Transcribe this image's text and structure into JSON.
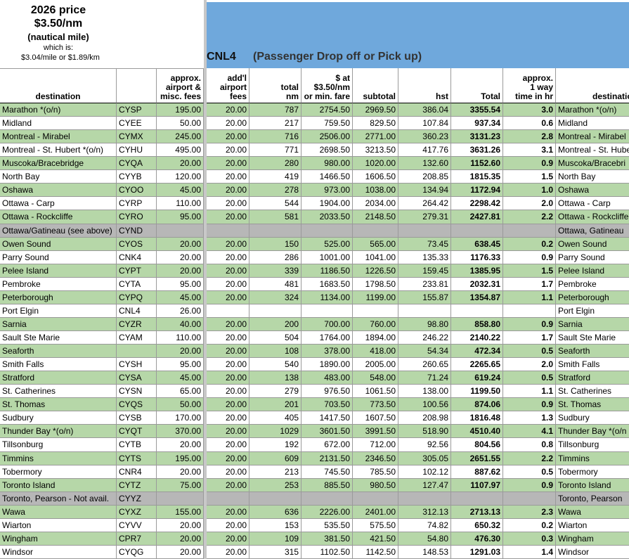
{
  "header": {
    "price_title": "2026 price",
    "rate": "$3.50/nm",
    "unit": "(nautical mile)",
    "which": "which is:",
    "conversion": "$3.04/mile or $1.89/km",
    "code": "CNL4",
    "banner": "(Passenger Drop off or Pick up)"
  },
  "table": {
    "columns": [
      "destination",
      null,
      "approx.\nairport &\nmisc. fees",
      "add'l\nairport\nfees",
      "total\nnm",
      "$ at\n$3.50/nm\nor min. fare",
      "subtotal",
      "hst",
      "Total",
      "approx.\n1 way\ntime in hr",
      "destination"
    ],
    "rows": [
      {
        "shade": "green",
        "cells": [
          "Marathon *(o/n)",
          "CYSP",
          "195.00",
          "20.00",
          "787",
          "2754.50",
          "2969.50",
          "386.04",
          "3355.54",
          "3.0",
          "Marathon *(o/n)"
        ]
      },
      {
        "shade": "white",
        "cells": [
          "Midland",
          "CYEE",
          "50.00",
          "20.00",
          "217",
          "759.50",
          "829.50",
          "107.84",
          "937.34",
          "0.6",
          "Midland"
        ]
      },
      {
        "shade": "green",
        "cells": [
          "Montreal - Mirabel",
          "CYMX",
          "245.00",
          "20.00",
          "716",
          "2506.00",
          "2771.00",
          "360.23",
          "3131.23",
          "2.8",
          "Montreal - Mirabel"
        ]
      },
      {
        "shade": "white",
        "cells": [
          "Montreal - St. Hubert *(o/n)",
          "CYHU",
          "495.00",
          "20.00",
          "771",
          "2698.50",
          "3213.50",
          "417.76",
          "3631.26",
          "3.1",
          "Montreal - St. Hube"
        ]
      },
      {
        "shade": "green",
        "cells": [
          "Muscoka/Bracebridge",
          "CYQA",
          "20.00",
          "20.00",
          "280",
          "980.00",
          "1020.00",
          "132.60",
          "1152.60",
          "0.9",
          "Muscoka/Bracebri"
        ]
      },
      {
        "shade": "white",
        "cells": [
          "North Bay",
          "CYYB",
          "120.00",
          "20.00",
          "419",
          "1466.50",
          "1606.50",
          "208.85",
          "1815.35",
          "1.5",
          "North Bay"
        ]
      },
      {
        "shade": "green",
        "cells": [
          "Oshawa",
          "CYOO",
          "45.00",
          "20.00",
          "278",
          "973.00",
          "1038.00",
          "134.94",
          "1172.94",
          "1.0",
          "Oshawa"
        ]
      },
      {
        "shade": "white",
        "cells": [
          "Ottawa - Carp",
          "CYRP",
          "110.00",
          "20.00",
          "544",
          "1904.00",
          "2034.00",
          "264.42",
          "2298.42",
          "2.0",
          "Ottawa - Carp"
        ]
      },
      {
        "shade": "green",
        "cells": [
          "Ottawa - Rockcliffe",
          "CYRO",
          "95.00",
          "20.00",
          "581",
          "2033.50",
          "2148.50",
          "279.31",
          "2427.81",
          "2.2",
          "Ottawa - Rockcliffe"
        ]
      },
      {
        "shade": "gray",
        "cells": [
          "Ottawa/Gatineau (see above)",
          "CYND",
          null,
          null,
          null,
          null,
          null,
          null,
          null,
          null,
          "Ottawa, Gatineau"
        ]
      },
      {
        "shade": "green",
        "cells": [
          "Owen Sound",
          "CYOS",
          "20.00",
          "20.00",
          "150",
          "525.00",
          "565.00",
          "73.45",
          "638.45",
          "0.2",
          "Owen Sound"
        ]
      },
      {
        "shade": "white",
        "cells": [
          "Parry Sound",
          "CNK4",
          "20.00",
          "20.00",
          "286",
          "1001.00",
          "1041.00",
          "135.33",
          "1176.33",
          "0.9",
          "Parry Sound"
        ]
      },
      {
        "shade": "green",
        "cells": [
          "Pelee Island",
          "CYPT",
          "20.00",
          "20.00",
          "339",
          "1186.50",
          "1226.50",
          "159.45",
          "1385.95",
          "1.5",
          "Pelee Island"
        ]
      },
      {
        "shade": "white",
        "cells": [
          "Pembroke",
          "CYTA",
          "95.00",
          "20.00",
          "481",
          "1683.50",
          "1798.50",
          "233.81",
          "2032.31",
          "1.7",
          "Pembroke"
        ]
      },
      {
        "shade": "green",
        "cells": [
          "Peterborough",
          "CYPQ",
          "45.00",
          "20.00",
          "324",
          "1134.00",
          "1199.00",
          "155.87",
          "1354.87",
          "1.1",
          "Peterborough"
        ]
      },
      {
        "shade": "white",
        "cells": [
          "Port Elgin",
          "CNL4",
          "26.00",
          null,
          null,
          null,
          null,
          null,
          null,
          null,
          "Port Elgin"
        ]
      },
      {
        "shade": "green",
        "cells": [
          "Sarnia",
          "CYZR",
          "40.00",
          "20.00",
          "200",
          "700.00",
          "760.00",
          "98.80",
          "858.80",
          "0.9",
          "Sarnia"
        ]
      },
      {
        "shade": "white",
        "cells": [
          "Sault Ste Marie",
          "CYAM",
          "110.00",
          "20.00",
          "504",
          "1764.00",
          "1894.00",
          "246.22",
          "2140.22",
          "1.7",
          "Sault Ste Marie"
        ]
      },
      {
        "shade": "green",
        "cells": [
          "Seaforth",
          null,
          "20.00",
          "20.00",
          "108",
          "378.00",
          "418.00",
          "54.34",
          "472.34",
          "0.5",
          "Seaforth"
        ]
      },
      {
        "shade": "white",
        "cells": [
          "Smith Falls",
          "CYSH",
          "95.00",
          "20.00",
          "540",
          "1890.00",
          "2005.00",
          "260.65",
          "2265.65",
          "2.0",
          "Smith Falls"
        ]
      },
      {
        "shade": "green",
        "cells": [
          "Stratford",
          "CYSA",
          "45.00",
          "20.00",
          "138",
          "483.00",
          "548.00",
          "71.24",
          "619.24",
          "0.5",
          "Stratford"
        ]
      },
      {
        "shade": "white",
        "cells": [
          "St. Catherines",
          "CYSN",
          "65.00",
          "20.00",
          "279",
          "976.50",
          "1061.50",
          "138.00",
          "1199.50",
          "1.1",
          "St. Catherines"
        ]
      },
      {
        "shade": "green",
        "cells": [
          "St. Thomas",
          "CYQS",
          "50.00",
          "20.00",
          "201",
          "703.50",
          "773.50",
          "100.56",
          "874.06",
          "0.9",
          "St. Thomas"
        ]
      },
      {
        "shade": "white",
        "cells": [
          "Sudbury",
          "CYSB",
          "170.00",
          "20.00",
          "405",
          "1417.50",
          "1607.50",
          "208.98",
          "1816.48",
          "1.3",
          "Sudbury"
        ]
      },
      {
        "shade": "green",
        "cells": [
          "Thunder Bay *(o/n)",
          "CYQT",
          "370.00",
          "20.00",
          "1029",
          "3601.50",
          "3991.50",
          "518.90",
          "4510.40",
          "4.1",
          "Thunder Bay *(o/n"
        ]
      },
      {
        "shade": "white",
        "cells": [
          "Tillsonburg",
          "CYTB",
          "20.00",
          "20.00",
          "192",
          "672.00",
          "712.00",
          "92.56",
          "804.56",
          "0.8",
          "Tillsonburg"
        ]
      },
      {
        "shade": "green",
        "cells": [
          "Timmins",
          "CYTS",
          "195.00",
          "20.00",
          "609",
          "2131.50",
          "2346.50",
          "305.05",
          "2651.55",
          "2.2",
          "Timmins"
        ]
      },
      {
        "shade": "white",
        "cells": [
          "Tobermory",
          "CNR4",
          "20.00",
          "20.00",
          "213",
          "745.50",
          "785.50",
          "102.12",
          "887.62",
          "0.5",
          "Tobermory"
        ]
      },
      {
        "shade": "green",
        "cells": [
          "Toronto Island",
          "CYTZ",
          "75.00",
          "20.00",
          "253",
          "885.50",
          "980.50",
          "127.47",
          "1107.97",
          "0.9",
          "Toronto Island"
        ]
      },
      {
        "shade": "gray",
        "cells": [
          "Toronto, Pearson - Not avail.",
          "CYYZ",
          null,
          null,
          null,
          null,
          null,
          null,
          null,
          null,
          "Toronto, Pearson"
        ]
      },
      {
        "shade": "green",
        "cells": [
          "Wawa",
          "CYXZ",
          "155.00",
          "20.00",
          "636",
          "2226.00",
          "2401.00",
          "312.13",
          "2713.13",
          "2.3",
          "Wawa"
        ]
      },
      {
        "shade": "white",
        "cells": [
          "Wiarton",
          "CYVV",
          "20.00",
          "20.00",
          "153",
          "535.50",
          "575.50",
          "74.82",
          "650.32",
          "0.2",
          "Wiarton"
        ]
      },
      {
        "shade": "green",
        "cells": [
          "Wingham",
          "CPR7",
          "20.00",
          "20.00",
          "109",
          "381.50",
          "421.50",
          "54.80",
          "476.30",
          "0.3",
          "Wingham"
        ]
      },
      {
        "shade": "white",
        "cells": [
          "Windsor",
          "CYQG",
          "20.00",
          "20.00",
          "315",
          "1102.50",
          "1142.50",
          "148.53",
          "1291.03",
          "1.4",
          "Windsor"
        ]
      }
    ]
  }
}
